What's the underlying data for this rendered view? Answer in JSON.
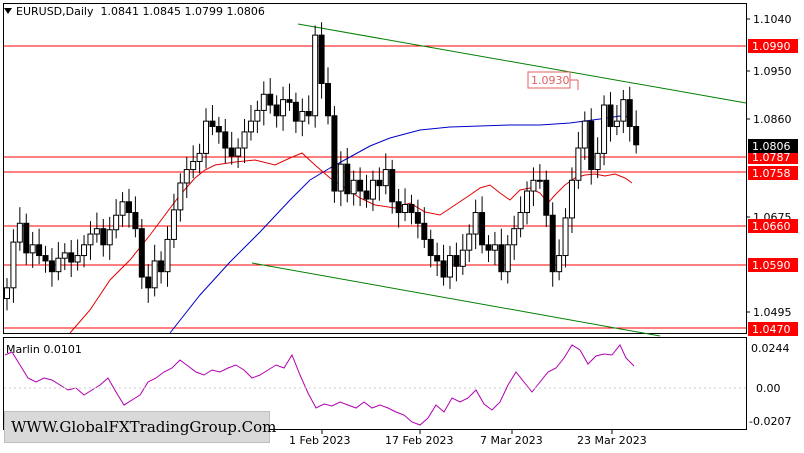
{
  "chart_header": {
    "symbol": "EURUSD,Daily",
    "ohlc": "1.0841 1.0845 1.0799 1.0806"
  },
  "indicator": {
    "label": "Marlin 0.0101",
    "axis_ticks": [
      "0.0244",
      "0.00",
      "-0.0207"
    ]
  },
  "price_axis_ticks": [
    "1.1040",
    "1.0950",
    "1.0860",
    "1.0675",
    "1.0495"
  ],
  "level_labels": [
    "1.0990",
    "1.0787",
    "1.0758",
    "1.0660",
    "1.0590",
    "1.0470"
  ],
  "current_price_label": "1.0806",
  "annotation_label": "1.0930",
  "date_labels": [
    "1 Feb 2023",
    "17 Feb 2023",
    "7 Mar 2023",
    "23 Mar 2023"
  ],
  "watermark": "WWW.GlobalFXTradingGroup.Com",
  "colors": {
    "levels": "#ff0000",
    "trend_channel": "#008000",
    "ma_blue": "#0000c8",
    "ma_red": "#e00000",
    "oscillator": "#b000b0",
    "candle": "#000000"
  },
  "chart_data": {
    "type": "candlestick",
    "symbol": "EURUSD",
    "timeframe": "Daily",
    "levels": [
      1.099,
      1.0787,
      1.0758,
      1.066,
      1.059,
      1.047
    ],
    "current_price": 1.0806,
    "annotation": 1.093,
    "price_axis": [
      1.104,
      1.095,
      1.086,
      1.0675,
      1.0495
    ],
    "close_series": [
      1.054,
      1.0625,
      1.066,
      1.0605,
      1.062,
      1.06,
      1.059,
      1.057,
      1.0595,
      1.0605,
      1.0588,
      1.06,
      1.062,
      1.064,
      1.065,
      1.062,
      1.0648,
      1.0675,
      1.07,
      1.068,
      1.065,
      1.056,
      1.054,
      1.059,
      1.057,
      1.063,
      1.0685,
      1.0735,
      1.076,
      1.0775,
      1.079,
      1.085,
      1.084,
      1.083,
      1.08,
      1.0785,
      1.08,
      1.083,
      1.085,
      1.087,
      1.09,
      1.088,
      1.086,
      1.089,
      1.0885,
      1.085,
      1.0868,
      1.086,
      1.101,
      1.092,
      1.086,
      1.072,
      1.077,
      1.0715,
      1.074,
      1.072,
      1.0705,
      1.074,
      1.073,
      1.076,
      1.07,
      1.068,
      1.0695,
      1.068,
      1.066,
      1.063,
      1.06,
      1.059,
      1.056,
      1.06,
      1.058,
      1.061,
      1.064,
      1.068,
      1.062,
      1.061,
      1.062,
      1.057,
      1.062,
      1.065,
      1.068,
      1.072,
      1.074,
      1.074,
      1.0675,
      1.057,
      1.06,
      1.067,
      1.074,
      1.08,
      1.085,
      1.076,
      1.079,
      1.088,
      1.084,
      1.085,
      1.089,
      1.084,
      1.0806
    ],
    "indicator": {
      "name": "Marlin",
      "value": 0.0101,
      "axis": [
        0.0244,
        0.0,
        -0.0207
      ]
    },
    "x_labels": [
      "1 Feb 2023",
      "17 Feb 2023",
      "7 Mar 2023",
      "23 Mar 2023"
    ]
  }
}
